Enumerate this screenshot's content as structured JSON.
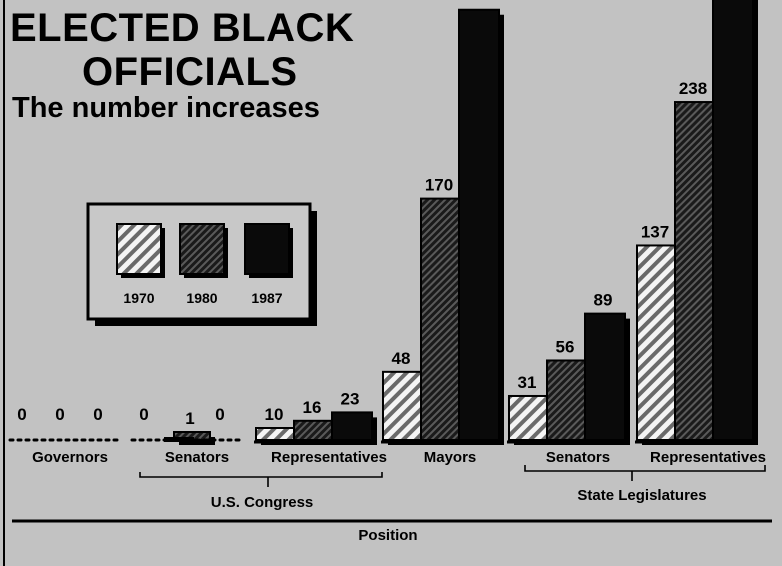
{
  "chart_data": {
    "type": "bar",
    "title": "ELECTED BLACK OFFICIALS",
    "title_lines": [
      "ELECTED BLACK",
      "OFFICIALS"
    ],
    "subtitle": "The number increases",
    "xlabel": "Position",
    "ylabel": "",
    "grid": false,
    "legend_position": "upper-left",
    "categories": [
      "Governors",
      "Senators",
      "Representatives",
      "Mayors",
      "Senators",
      "Representatives"
    ],
    "category_groups": [
      {
        "label": "U.S. Congress",
        "categories": [
          "Senators",
          "Representatives"
        ]
      },
      {
        "label": "State Legislatures",
        "categories": [
          "Senators",
          "Representatives"
        ]
      }
    ],
    "series": [
      {
        "name": "1970",
        "values": [
          0,
          0,
          10,
          48,
          31,
          137
        ]
      },
      {
        "name": "1980",
        "values": [
          0,
          1,
          16,
          170,
          56,
          238
        ]
      },
      {
        "name": "1987",
        "values": [
          0,
          0,
          23,
          303,
          89,
          315
        ]
      }
    ],
    "value_labels": {
      "1970": [
        "0",
        "0",
        "10",
        "48",
        "31",
        "137"
      ],
      "1980": [
        "0",
        "1",
        "16",
        "170",
        "56",
        "238"
      ],
      "1987": [
        "0",
        "0",
        "23",
        "",
        "89",
        ""
      ]
    },
    "ylim": [
      0,
      303
    ]
  },
  "colors": {
    "background": "#c2c2c2",
    "ink": "#000000",
    "bar_1970": "#f2f2f2",
    "bar_1980": "#3c3c3c",
    "bar_1987": "#0a0a0a"
  }
}
